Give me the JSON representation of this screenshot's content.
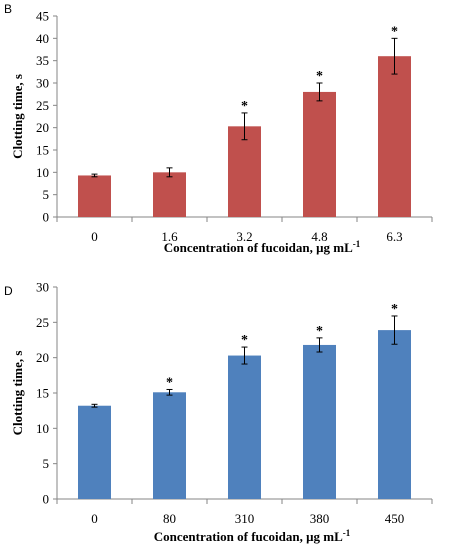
{
  "chart_data": [
    {
      "type": "bar",
      "panel_label": "B",
      "categories": [
        "0",
        "1.6",
        "3.2",
        "4.8",
        "6.3"
      ],
      "values": [
        9.3,
        10.0,
        20.3,
        28.0,
        36.0
      ],
      "errors": [
        0.3,
        1.0,
        3.0,
        2.0,
        4.0
      ],
      "significance": [
        "",
        "",
        "*",
        "*",
        "*"
      ],
      "ylabel": "Clotting time, s",
      "xlabel": "Concentration of fucoidan, μg mL",
      "xlabel_superscript": "-1",
      "ylim": [
        0,
        45
      ],
      "yticks": [
        0,
        5,
        10,
        15,
        20,
        25,
        30,
        35,
        40,
        45
      ],
      "bar_color": "#c0504d",
      "grid": false
    },
    {
      "type": "bar",
      "panel_label": "D",
      "categories": [
        "0",
        "80",
        "310",
        "380",
        "450"
      ],
      "values": [
        13.2,
        15.1,
        20.3,
        21.8,
        23.9
      ],
      "errors": [
        0.2,
        0.4,
        1.2,
        1.0,
        2.0
      ],
      "significance": [
        "",
        "*",
        "*",
        "*",
        "*"
      ],
      "ylabel": "Clotting time, s",
      "xlabel": "Concentration of fucoidan, μg mL",
      "xlabel_superscript": "-1",
      "ylim": [
        0,
        30
      ],
      "yticks": [
        0,
        5,
        10,
        15,
        20,
        25,
        30
      ],
      "bar_color": "#4f81bd",
      "grid": false
    }
  ]
}
